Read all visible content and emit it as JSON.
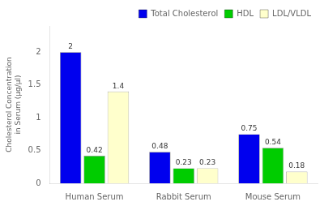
{
  "chart_data": {
    "type": "bar",
    "categories": [
      "Human Serum",
      "Rabbit Serum",
      "Mouse Serum"
    ],
    "series": [
      {
        "name": "Total Cholesterol",
        "color": "#0000EE",
        "values": [
          2,
          0.48,
          0.75
        ]
      },
      {
        "name": "HDL",
        "color": "#00CC00",
        "values": [
          0.42,
          0.23,
          0.54
        ]
      },
      {
        "name": "LDL/VLDL",
        "color": "#FFFFCC",
        "values": [
          1.4,
          0.23,
          0.18
        ]
      }
    ],
    "ylabel": "Cholesterol Concentration\nin Serum (μg/μl)",
    "ylim": [
      0,
      2.4
    ],
    "yticks": [
      0,
      0.5,
      1,
      1.5,
      2
    ],
    "legend": "upper right",
    "data_labels": true,
    "grid": false
  }
}
